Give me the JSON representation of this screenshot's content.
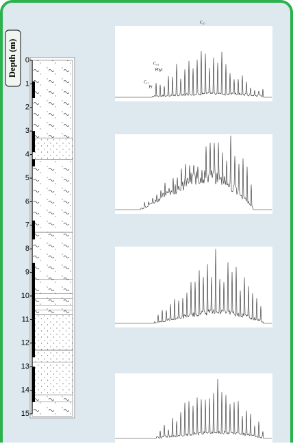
{
  "depth_column": {
    "label": "Depth (m)",
    "ticks": [
      0,
      1,
      2,
      3,
      4,
      5,
      6,
      7,
      8,
      9,
      10,
      11,
      12,
      13,
      14,
      15
    ]
  },
  "chromatograms": [
    {
      "peak_labels": [
        "C₁₇",
        "Pr",
        "C₁₈",
        "Phyt",
        "C₂₇"
      ]
    }
  ]
}
